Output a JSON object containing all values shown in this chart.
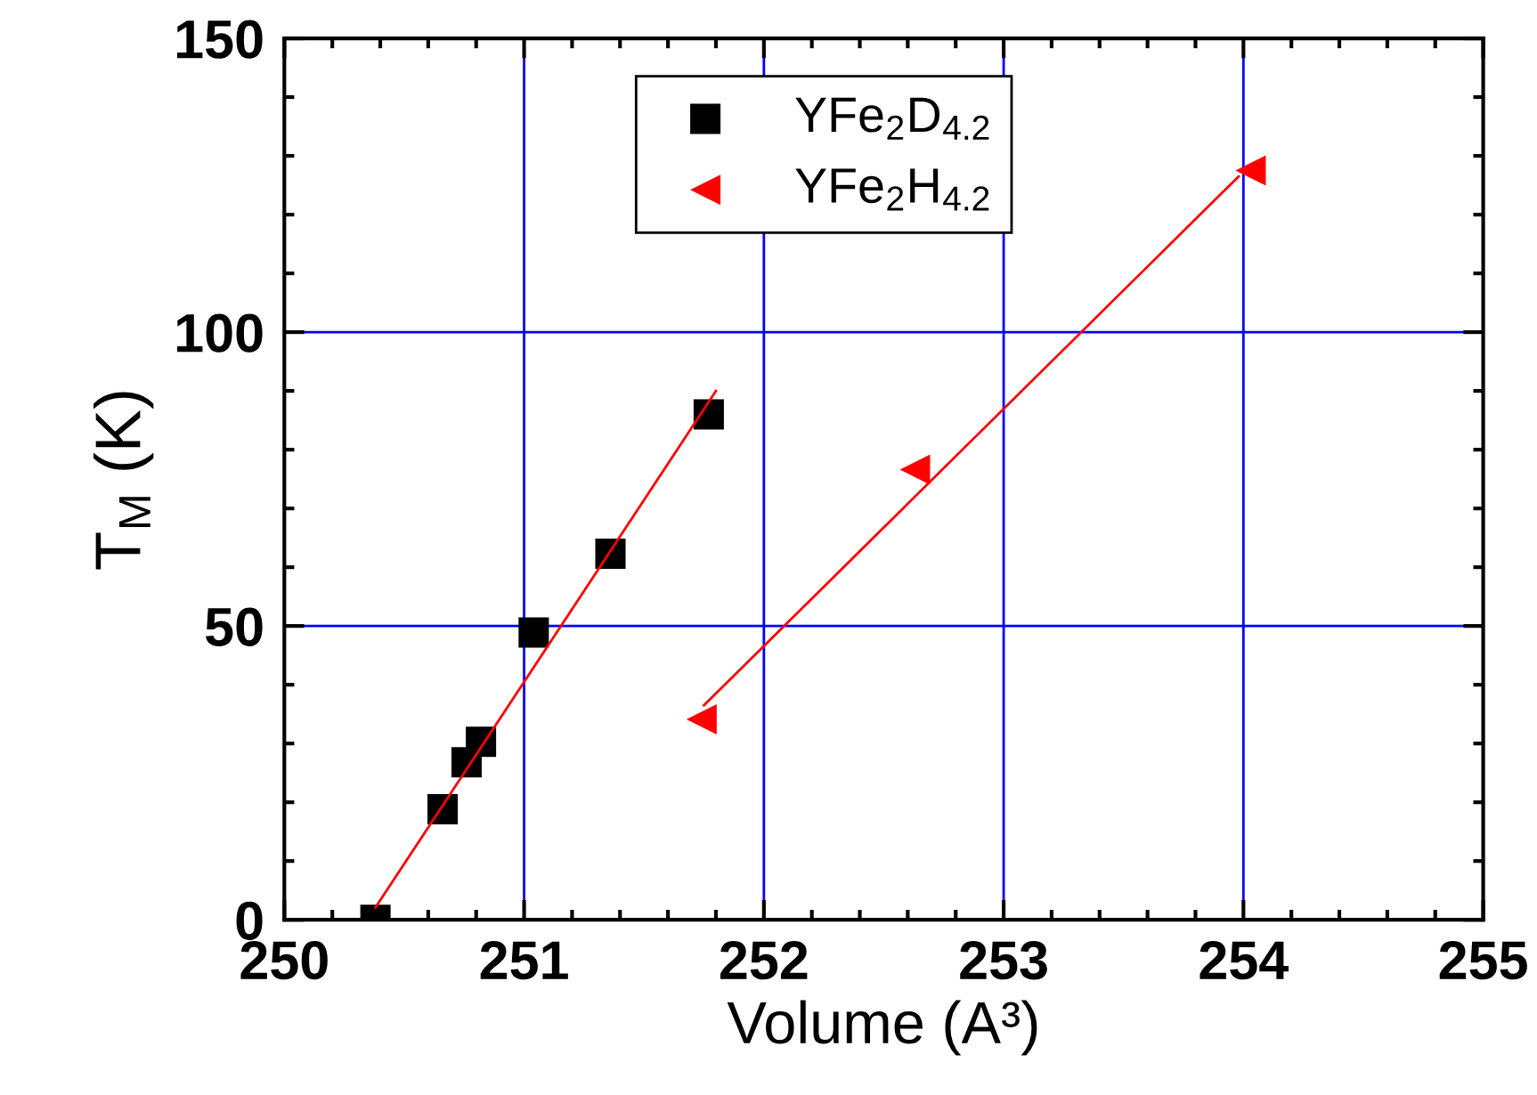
{
  "chart_data": {
    "type": "scatter",
    "xlabel": "Volume (A³)",
    "ylabel": "T$_{M}$ (K)",
    "xlim": [
      250,
      255
    ],
    "xticks": [
      250,
      251,
      252,
      253,
      254,
      255
    ],
    "ylim": [
      0,
      150
    ],
    "yticks": [
      0,
      50,
      100,
      150
    ],
    "grid": true,
    "legend": "top",
    "series": [
      {
        "name": "YFe$_{2}$D$_{4.2}$",
        "color": "#000000",
        "marker": "square",
        "x": [
          250.38,
          250.66,
          250.76,
          250.82,
          251.04,
          251.36,
          251.77
        ],
        "values": [
          0,
          18.8,
          26.8,
          30.3,
          48.9,
          62.3,
          86.0
        ]
      },
      {
        "name": "YFe$_{2}$H$_{4.2}$",
        "color": "#ff0000",
        "marker": "triangle",
        "x": [
          251.74,
          252.63,
          254.03
        ],
        "values": [
          34.1,
          76.6,
          127.5
        ]
      },
      {
        "type": "line",
        "color": "#ff0000",
        "marker": "none",
        "x": [
          250.38,
          251.8
        ],
        "values": [
          2.1,
          90.0
        ]
      },
      {
        "type": "line",
        "color": "#ff0000",
        "marker": "none",
        "x": [
          251.75,
          253.98
        ],
        "values": [
          36.5,
          126.5
        ]
      }
    ]
  }
}
